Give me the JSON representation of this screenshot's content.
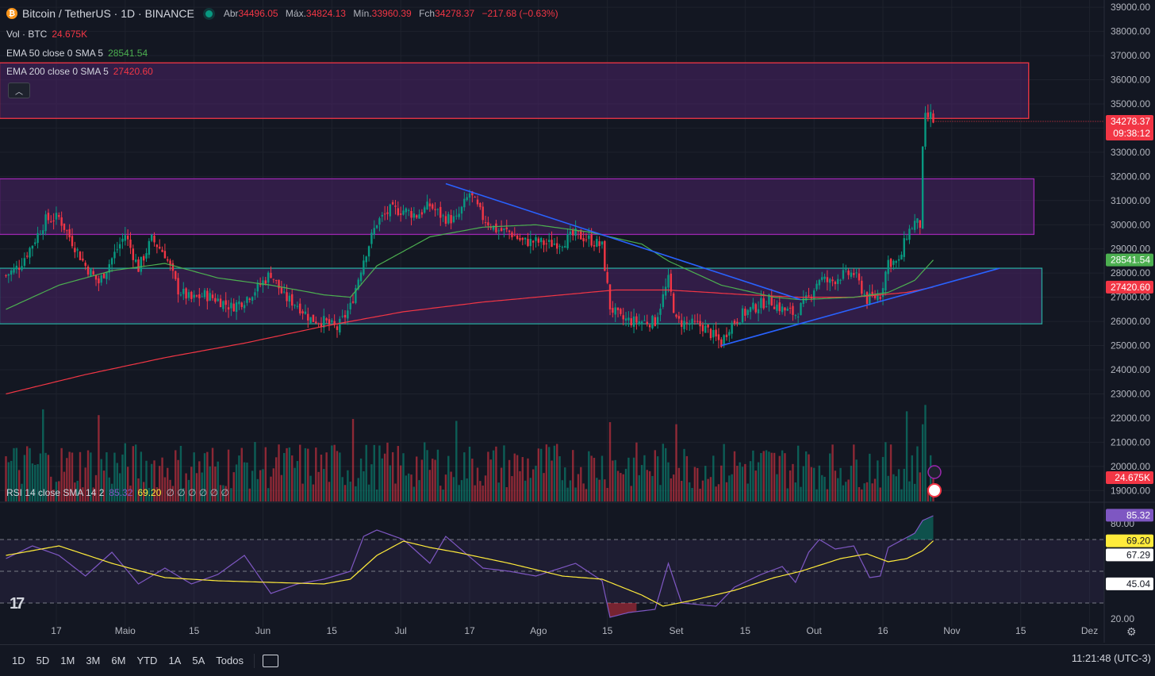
{
  "header": {
    "symbol": "Bitcoin / TetherUS · 1D · BINANCE",
    "ohlc": [
      {
        "label": "Abr",
        "value": "34496.05"
      },
      {
        "label": "Máx.",
        "value": "34824.13"
      },
      {
        "label": "Mín.",
        "value": "33960.39"
      },
      {
        "label": "Fch",
        "value": "34278.37"
      }
    ],
    "change": "−217.68 (−0.63%)"
  },
  "legends": {
    "vol_label": "Vol · BTC",
    "vol_value": "24.675K",
    "ema50_label": "EMA 50 close 0 SMA 5",
    "ema50_value": "28541.54",
    "ema200_label": "EMA 200 close 0 SMA 5",
    "ema200_value": "27420.60",
    "rsi_label": "RSI 14 close SMA 14 2",
    "rsi_value": "85.32",
    "rsi_sma_value": "69.20",
    "rsi_extra": "∅ ∅ ∅ ∅ ∅ ∅"
  },
  "colors": {
    "up": "#089981",
    "down": "#f23645",
    "ema50": "#4caf50",
    "ema200": "#f23645",
    "rsi": "#7e57c2",
    "rsi_sma": "#ffeb3b",
    "zone_top_border": "#f23645",
    "zone_mid_border": "#9c27b0",
    "zone_low_border": "#26a69a",
    "trendline": "#2962ff",
    "zone_fill": "#4a2266"
  },
  "timeframes": [
    "1D",
    "5D",
    "1M",
    "3M",
    "6M",
    "YTD",
    "1A",
    "5A",
    "Todos"
  ],
  "clock": "11:21:48 (UTC-3)",
  "chart_data": [
    {
      "type": "candlestick",
      "title": "",
      "x_ticks": [
        "17",
        "Maio",
        "15",
        "Jun",
        "15",
        "Jul",
        "17",
        "Ago",
        "15",
        "Set",
        "15",
        "Out",
        "16",
        "Nov",
        "15",
        "Dez"
      ],
      "y_ticks": [
        "39000.00",
        "38000.00",
        "37000.00",
        "36000.00",
        "35000.00",
        "34000.00",
        "33000.00",
        "32000.00",
        "31000.00",
        "30000.00",
        "29000.00",
        "28000.00",
        "27000.00",
        "26000.00",
        "25000.00",
        "24000.00",
        "23000.00",
        "22000.00",
        "21000.00",
        "20000.00",
        "19000.00"
      ],
      "ylim": [
        18550,
        39300
      ],
      "last_price_label": "34278.37",
      "countdown_label": "09:38:12",
      "ema50_label_value": "28541.54",
      "ema200_label_value": "27420.60",
      "volume_label_value": "24.675K",
      "close_anchors": [
        [
          0,
          27900
        ],
        [
          5,
          28300
        ],
        [
          10,
          29200
        ],
        [
          15,
          30200
        ],
        [
          20,
          30300
        ],
        [
          25,
          29300
        ],
        [
          30,
          28300
        ],
        [
          35,
          27600
        ],
        [
          40,
          28600
        ],
        [
          45,
          29600
        ],
        [
          50,
          28200
        ],
        [
          55,
          29400
        ],
        [
          60,
          28800
        ],
        [
          65,
          27300
        ],
        [
          70,
          26900
        ],
        [
          75,
          27100
        ],
        [
          80,
          26900
        ],
        [
          85,
          26600
        ],
        [
          90,
          26900
        ],
        [
          95,
          27400
        ],
        [
          100,
          28000
        ],
        [
          105,
          27000
        ],
        [
          110,
          26700
        ],
        [
          115,
          26100
        ],
        [
          120,
          26000
        ],
        [
          125,
          25700
        ],
        [
          130,
          26600
        ],
        [
          135,
          28600
        ],
        [
          140,
          30100
        ],
        [
          145,
          30600
        ],
        [
          150,
          30600
        ],
        [
          155,
          30400
        ],
        [
          160,
          30800
        ],
        [
          165,
          30300
        ],
        [
          170,
          30200
        ],
        [
          175,
          31300
        ],
        [
          180,
          30300
        ],
        [
          185,
          29800
        ],
        [
          190,
          29700
        ],
        [
          195,
          29300
        ],
        [
          200,
          29300
        ],
        [
          205,
          29200
        ],
        [
          210,
          29300
        ],
        [
          215,
          29600
        ],
        [
          220,
          29400
        ],
        [
          225,
          29100
        ],
        [
          228,
          26600
        ],
        [
          232,
          26100
        ],
        [
          237,
          26000
        ],
        [
          241,
          26000
        ],
        [
          245,
          26000
        ],
        [
          250,
          27700
        ],
        [
          253,
          26000
        ],
        [
          258,
          25900
        ],
        [
          263,
          25800
        ],
        [
          268,
          25300
        ],
        [
          270,
          25100
        ],
        [
          273,
          25800
        ],
        [
          278,
          26300
        ],
        [
          283,
          26600
        ],
        [
          288,
          26900
        ],
        [
          293,
          26500
        ],
        [
          298,
          26300
        ],
        [
          303,
          27000
        ],
        [
          307,
          27800
        ],
        [
          311,
          27600
        ],
        [
          315,
          27900
        ],
        [
          320,
          28000
        ],
        [
          325,
          26900
        ],
        [
          330,
          27100
        ],
        [
          333,
          28500
        ],
        [
          337,
          28400
        ],
        [
          340,
          29600
        ],
        [
          343,
          30100
        ],
        [
          345,
          30000
        ],
        [
          346,
          33000
        ],
        [
          347,
          34400
        ],
        [
          349,
          34500
        ],
        [
          350,
          34278
        ]
      ],
      "ema50": [
        [
          0,
          26500
        ],
        [
          20,
          27500
        ],
        [
          40,
          28100
        ],
        [
          60,
          28400
        ],
        [
          80,
          27800
        ],
        [
          100,
          27500
        ],
        [
          120,
          27100
        ],
        [
          130,
          27000
        ],
        [
          140,
          28300
        ],
        [
          160,
          29500
        ],
        [
          180,
          29900
        ],
        [
          200,
          30000
        ],
        [
          220,
          29700
        ],
        [
          240,
          29200
        ],
        [
          250,
          28500
        ],
        [
          270,
          27500
        ],
        [
          290,
          27000
        ],
        [
          300,
          26900
        ],
        [
          320,
          27000
        ],
        [
          333,
          27200
        ],
        [
          343,
          27700
        ],
        [
          350,
          28541
        ]
      ],
      "ema200": [
        [
          0,
          23000
        ],
        [
          30,
          23800
        ],
        [
          60,
          24500
        ],
        [
          90,
          25100
        ],
        [
          120,
          25800
        ],
        [
          150,
          26400
        ],
        [
          180,
          26800
        ],
        [
          200,
          27000
        ],
        [
          230,
          27300
        ],
        [
          250,
          27300
        ],
        [
          280,
          27100
        ],
        [
          300,
          27000
        ],
        [
          320,
          27000
        ],
        [
          340,
          27200
        ],
        [
          350,
          27420
        ]
      ],
      "trendlines": [
        [
          [
            166,
            31700
          ],
          [
            300,
            26900
          ]
        ],
        [
          [
            270,
            25000
          ],
          [
            375,
            28200
          ]
        ]
      ],
      "zones": [
        {
          "from": 0,
          "to": 386,
          "low": 34400,
          "high": 36700,
          "kind": "top"
        },
        {
          "from": 0,
          "to": 388,
          "low": 29600,
          "high": 31900,
          "kind": "mid"
        },
        {
          "from": 0,
          "to": 391,
          "low": 25900,
          "high": 28200,
          "kind": "low"
        }
      ]
    },
    {
      "type": "area",
      "title": "",
      "name": "RSI 14",
      "ylim": [
        20,
        88
      ],
      "y_ticks": [
        "80.00",
        "20.00"
      ],
      "labels": {
        "rsi": "85.32",
        "sma": "69.20",
        "upper": "67.29",
        "lower": "45.04"
      },
      "levels": [
        70,
        50,
        30
      ],
      "rsi_anchors": [
        [
          0,
          58
        ],
        [
          10,
          66
        ],
        [
          20,
          60
        ],
        [
          30,
          47
        ],
        [
          40,
          62
        ],
        [
          50,
          42
        ],
        [
          60,
          52
        ],
        [
          70,
          42
        ],
        [
          80,
          48
        ],
        [
          90,
          60
        ],
        [
          100,
          36
        ],
        [
          110,
          42
        ],
        [
          120,
          45
        ],
        [
          130,
          50
        ],
        [
          135,
          72
        ],
        [
          140,
          76
        ],
        [
          150,
          70
        ],
        [
          160,
          55
        ],
        [
          166,
          72
        ],
        [
          180,
          52
        ],
        [
          190,
          50
        ],
        [
          200,
          47
        ],
        [
          215,
          55
        ],
        [
          225,
          44
        ],
        [
          228,
          21
        ],
        [
          235,
          24
        ],
        [
          245,
          26
        ],
        [
          250,
          55
        ],
        [
          255,
          30
        ],
        [
          268,
          28
        ],
        [
          275,
          40
        ],
        [
          285,
          48
        ],
        [
          293,
          53
        ],
        [
          298,
          43
        ],
        [
          303,
          62
        ],
        [
          307,
          70
        ],
        [
          313,
          64
        ],
        [
          320,
          66
        ],
        [
          326,
          46
        ],
        [
          330,
          47
        ],
        [
          333,
          65
        ],
        [
          343,
          74
        ],
        [
          346,
          82
        ],
        [
          350,
          85
        ]
      ],
      "sma_anchors": [
        [
          0,
          60
        ],
        [
          20,
          66
        ],
        [
          40,
          55
        ],
        [
          60,
          46
        ],
        [
          80,
          44
        ],
        [
          100,
          43
        ],
        [
          120,
          42
        ],
        [
          130,
          45
        ],
        [
          140,
          60
        ],
        [
          150,
          69
        ],
        [
          160,
          65
        ],
        [
          170,
          62
        ],
        [
          190,
          55
        ],
        [
          210,
          47
        ],
        [
          225,
          45
        ],
        [
          240,
          35
        ],
        [
          248,
          28
        ],
        [
          260,
          32
        ],
        [
          275,
          38
        ],
        [
          290,
          46
        ],
        [
          300,
          50
        ],
        [
          315,
          58
        ],
        [
          325,
          61
        ],
        [
          333,
          56
        ],
        [
          340,
          58
        ],
        [
          346,
          63
        ],
        [
          350,
          69.2
        ]
      ]
    }
  ]
}
